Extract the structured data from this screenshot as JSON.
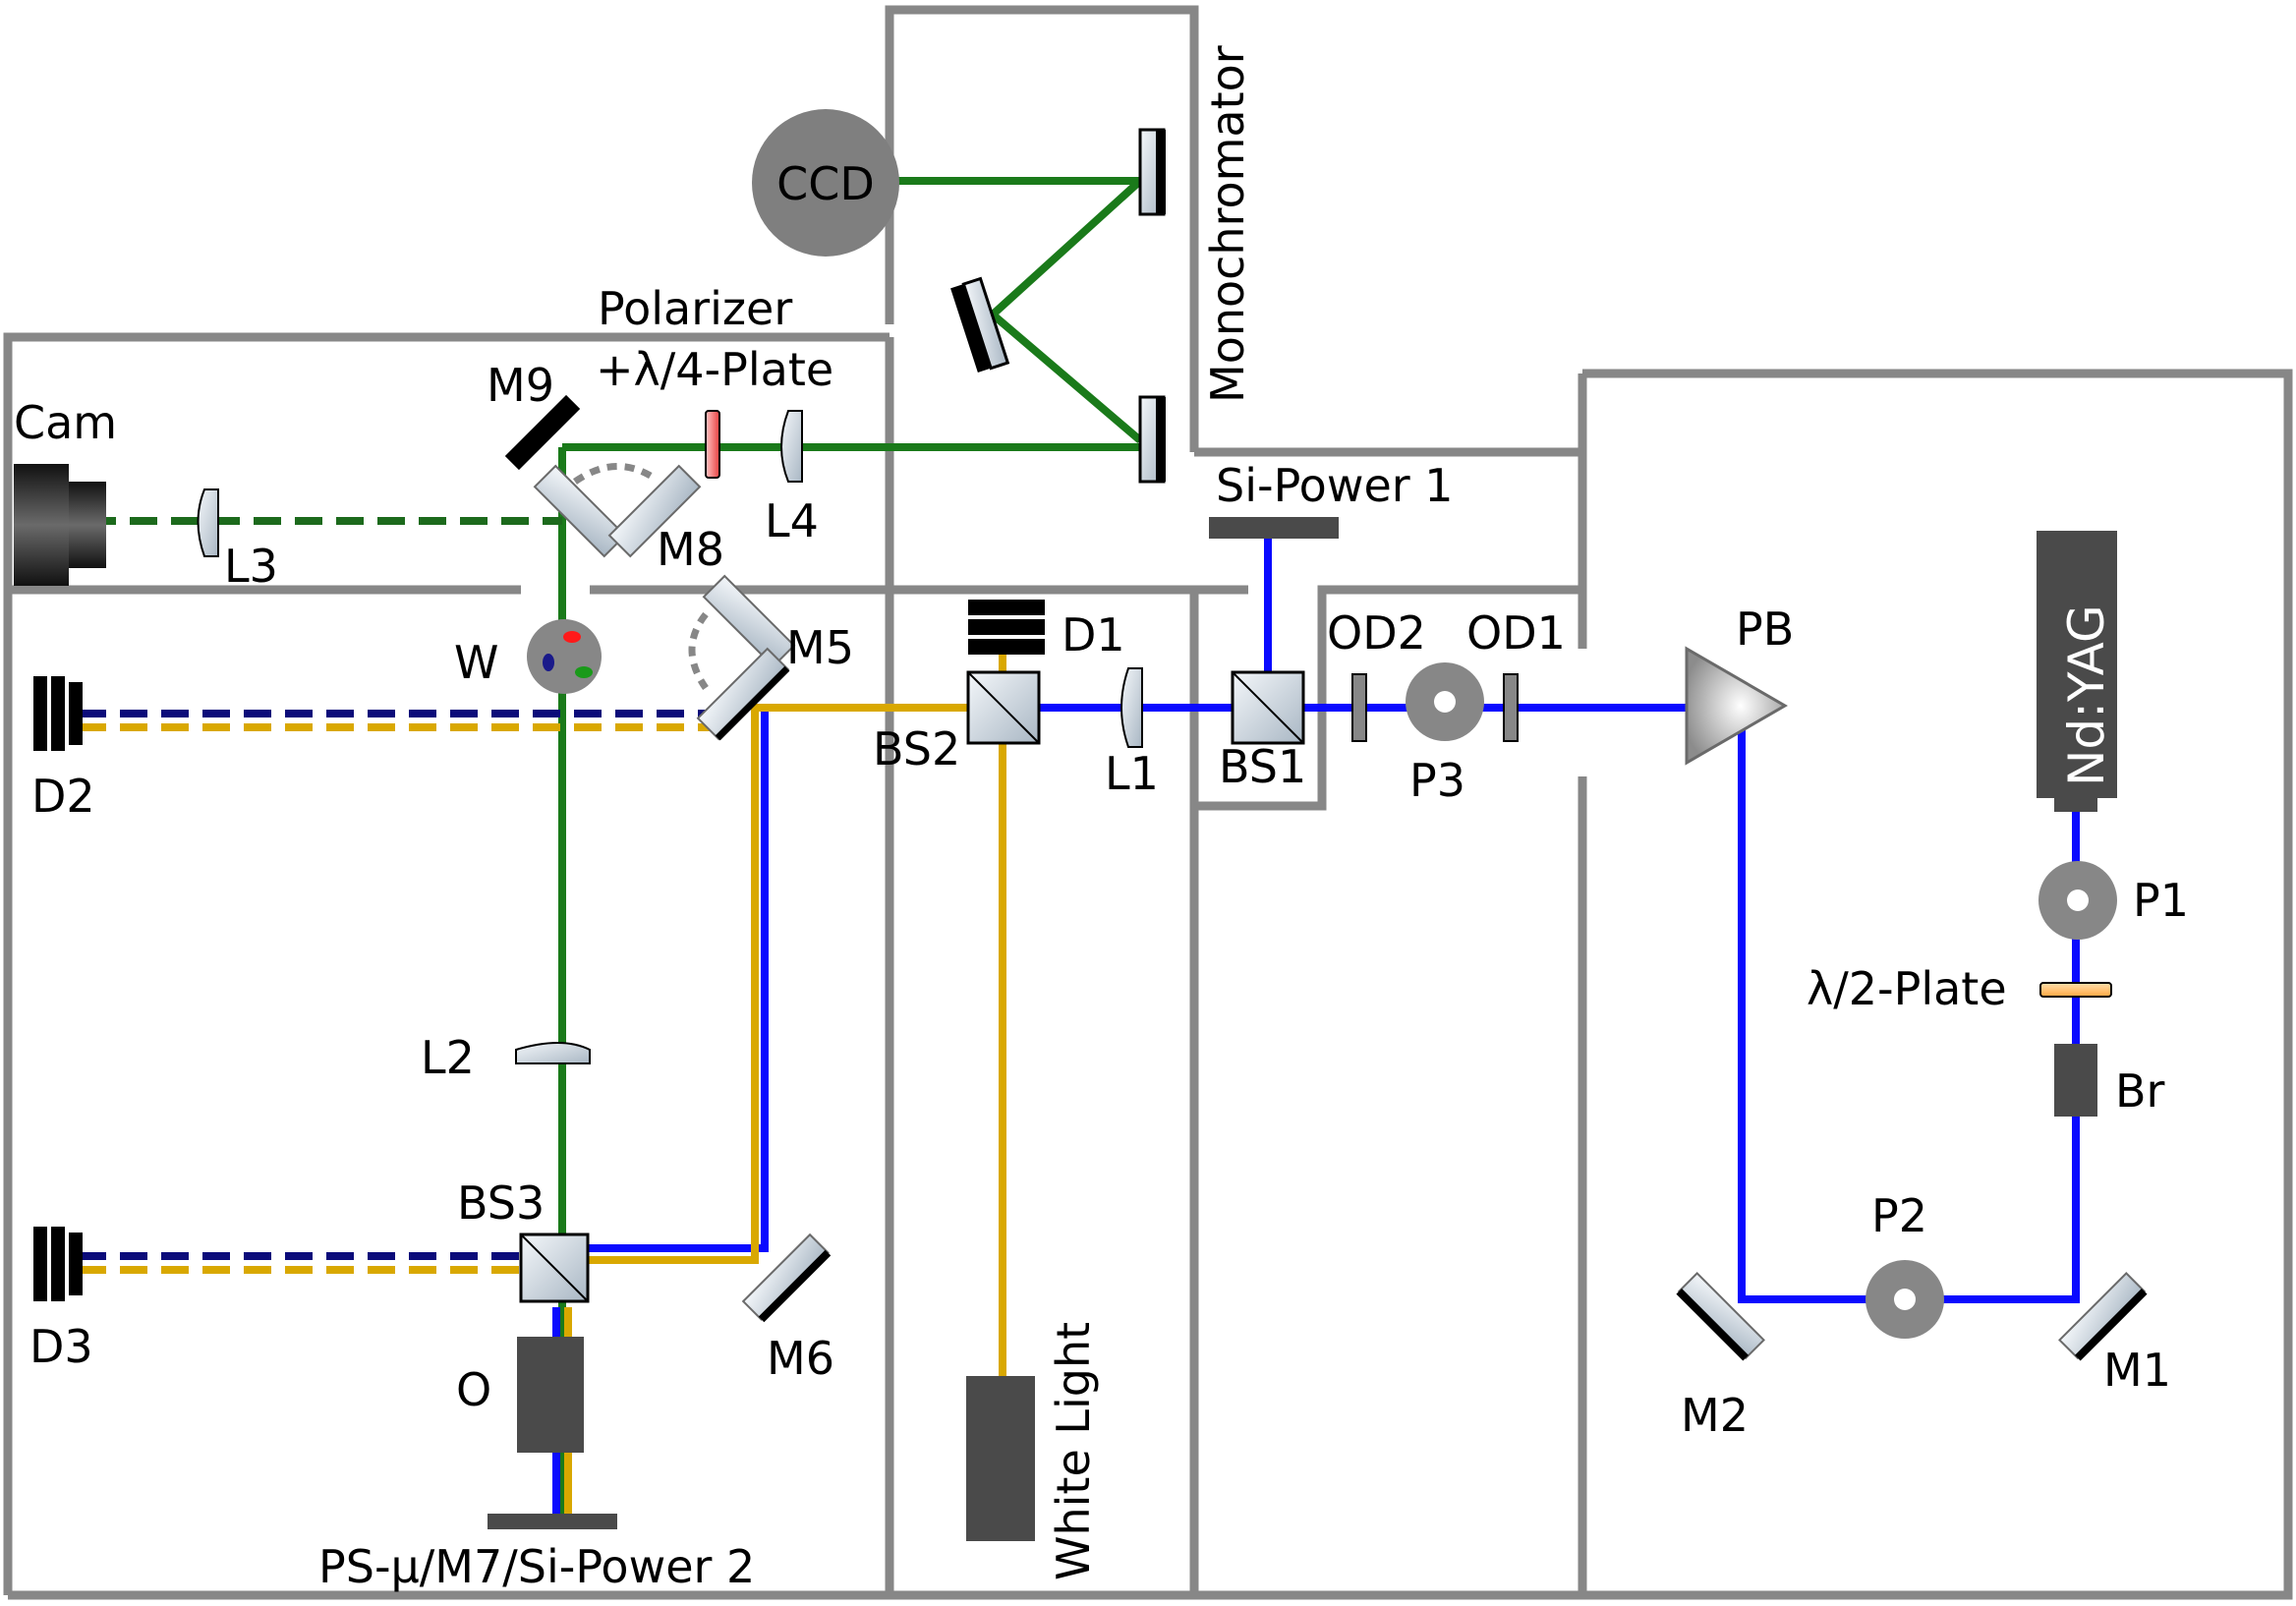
{
  "labels": {
    "ccd": "CCD",
    "monochromator": "Monochromator",
    "polarizer": "Polarizer",
    "quarter_plate": "+λ/4-Plate",
    "cam": "Cam",
    "m9": "M9",
    "m8": "M8",
    "l4": "L4",
    "l3": "L3",
    "w": "W",
    "m5": "M5",
    "d1": "D1",
    "d2": "D2",
    "bs2": "BS2",
    "l1": "L1",
    "bs1": "BS1",
    "si_power_1": "Si-Power 1",
    "od2": "OD2",
    "od1": "OD1",
    "p3": "P3",
    "pb": "PB",
    "nd_yag": "Nd:YAG",
    "p1": "P1",
    "half_plate": "λ/2-Plate",
    "br": "Br",
    "p2": "P2",
    "m1": "M1",
    "m2": "M2",
    "l2": "L2",
    "bs3": "BS3",
    "m6": "M6",
    "d3": "D3",
    "o": "O",
    "ps_label": "PS-μ/M7/Si-Power 2",
    "white_light": "White Light"
  },
  "colors": {
    "wall": "#878787",
    "blue_beam": "#0a0aff",
    "green_beam": "#1a7a1a",
    "yellow_beam": "#d9a800",
    "dark_blue_dash": "#0b0b7a",
    "dark_green_dash": "#1c6a1c",
    "component_dark": "#4a4a4a",
    "ccd_fill": "#7f7f7f",
    "optic_light": "#dde6ee"
  }
}
